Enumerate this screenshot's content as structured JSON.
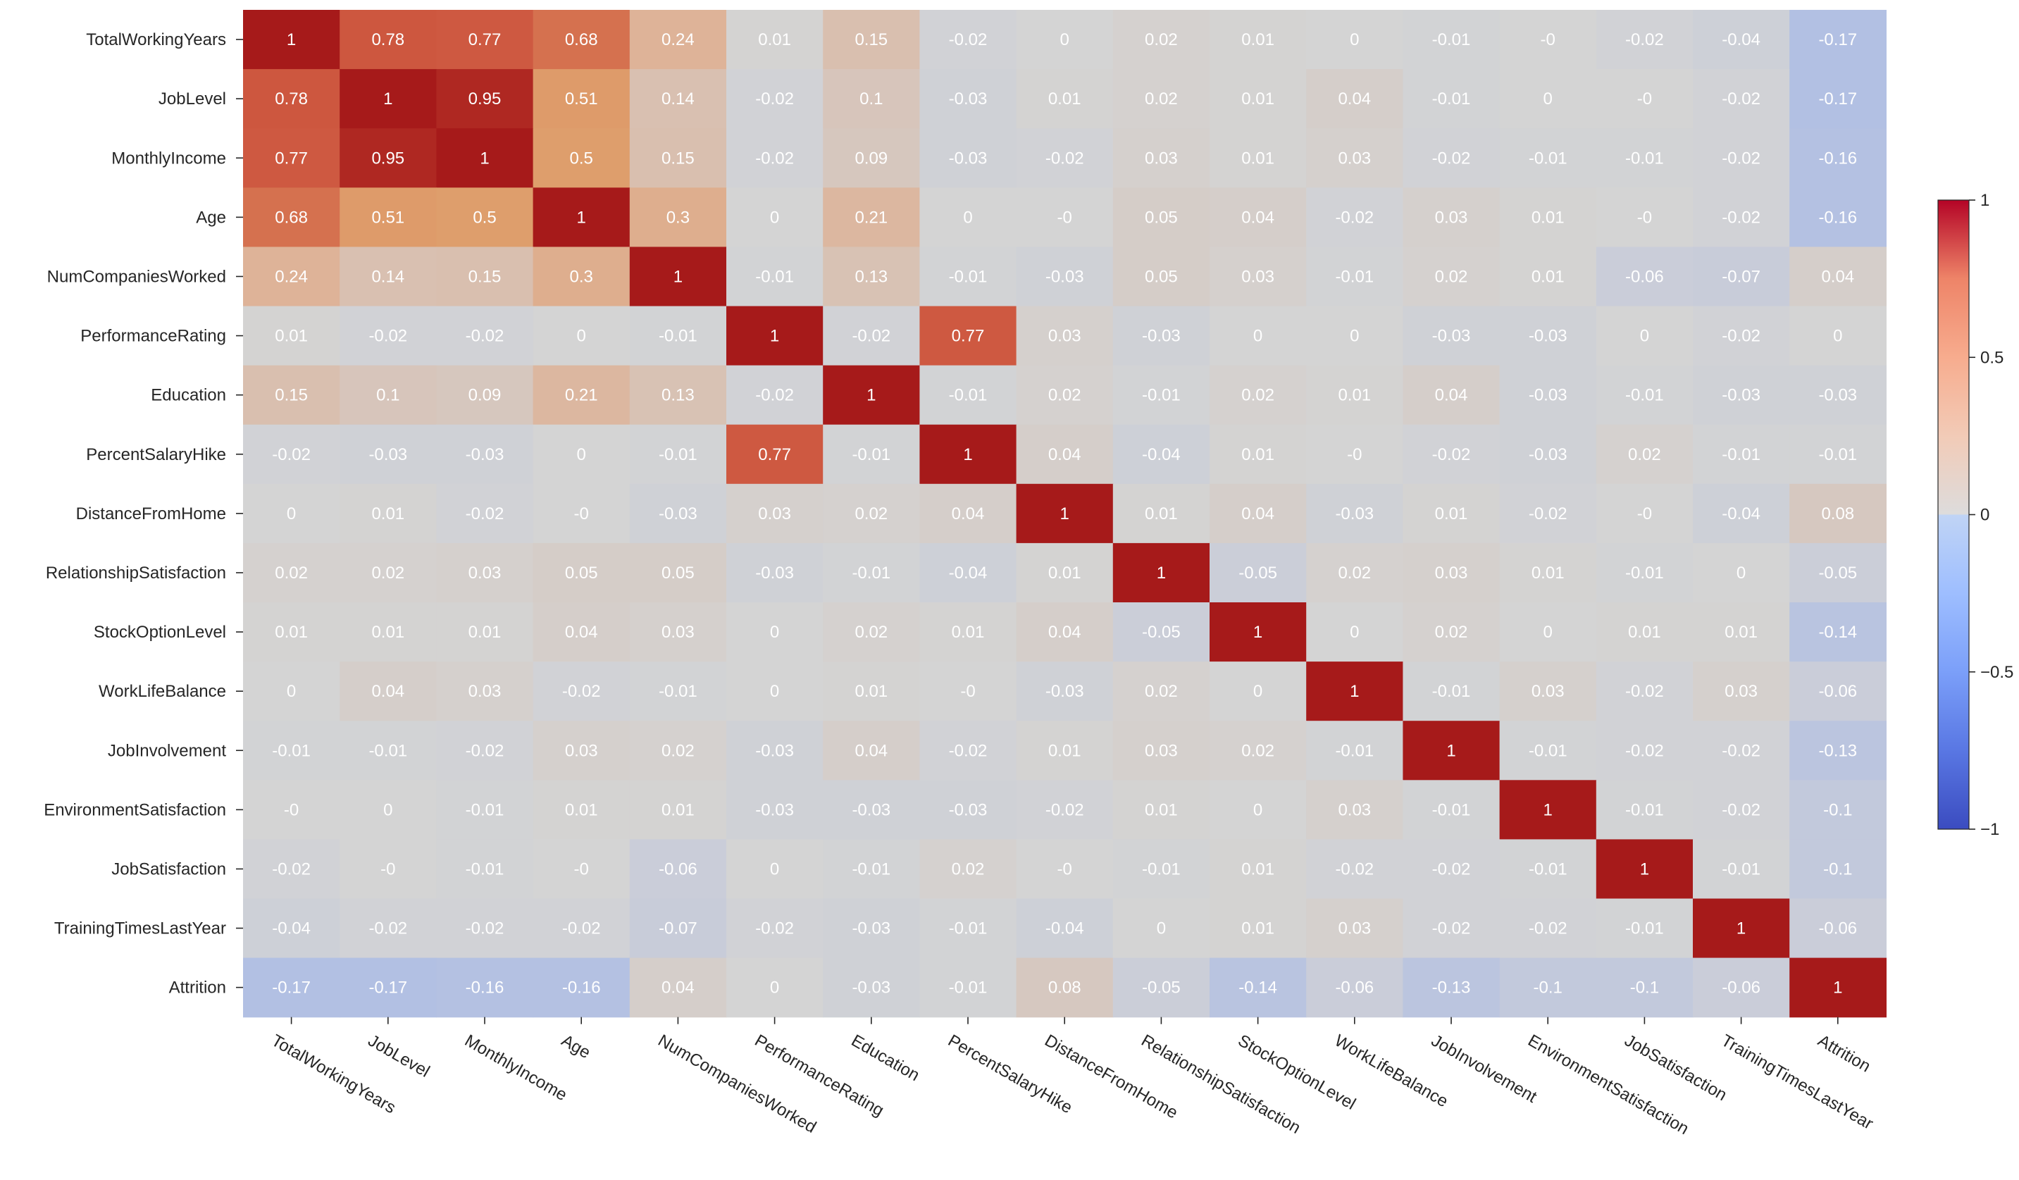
{
  "chart_data": {
    "type": "heatmap",
    "title": "",
    "xlabel": "",
    "ylabel": "",
    "colormap": "coolwarm",
    "value_range": [
      -1,
      1
    ],
    "annotate": true,
    "labels": [
      "TotalWorkingYears",
      "JobLevel",
      "MonthlyIncome",
      "Age",
      "NumCompaniesWorked",
      "PerformanceRating",
      "Education",
      "PercentSalaryHike",
      "DistanceFromHome",
      "RelationshipSatisfaction",
      "StockOptionLevel",
      "WorkLifeBalance",
      "JobInvolvement",
      "EnvironmentSatisfaction",
      "JobSatisfaction",
      "TrainingTimesLastYear",
      "Attrition"
    ],
    "values": [
      [
        "1",
        "0.78",
        "0.77",
        "0.68",
        "0.24",
        "0.01",
        "0.15",
        "-0.02",
        "0",
        "0.02",
        "0.01",
        "0",
        "-0.01",
        "-0",
        "-0.02",
        "-0.04",
        "-0.17"
      ],
      [
        "0.78",
        "1",
        "0.95",
        "0.51",
        "0.14",
        "-0.02",
        "0.1",
        "-0.03",
        "0.01",
        "0.02",
        "0.01",
        "0.04",
        "-0.01",
        "0",
        "-0",
        "-0.02",
        "-0.17"
      ],
      [
        "0.77",
        "0.95",
        "1",
        "0.5",
        "0.15",
        "-0.02",
        "0.09",
        "-0.03",
        "-0.02",
        "0.03",
        "0.01",
        "0.03",
        "-0.02",
        "-0.01",
        "-0.01",
        "-0.02",
        "-0.16"
      ],
      [
        "0.68",
        "0.51",
        "0.5",
        "1",
        "0.3",
        "0",
        "0.21",
        "0",
        "-0",
        "0.05",
        "0.04",
        "-0.02",
        "0.03",
        "0.01",
        "-0",
        "-0.02",
        "-0.16"
      ],
      [
        "0.24",
        "0.14",
        "0.15",
        "0.3",
        "1",
        "-0.01",
        "0.13",
        "-0.01",
        "-0.03",
        "0.05",
        "0.03",
        "-0.01",
        "0.02",
        "0.01",
        "-0.06",
        "-0.07",
        "0.04"
      ],
      [
        "0.01",
        "-0.02",
        "-0.02",
        "0",
        "-0.01",
        "1",
        "-0.02",
        "0.77",
        "0.03",
        "-0.03",
        "0",
        "0",
        "-0.03",
        "-0.03",
        "0",
        "-0.02",
        "0"
      ],
      [
        "0.15",
        "0.1",
        "0.09",
        "0.21",
        "0.13",
        "-0.02",
        "1",
        "-0.01",
        "0.02",
        "-0.01",
        "0.02",
        "0.01",
        "0.04",
        "-0.03",
        "-0.01",
        "-0.03",
        "-0.03"
      ],
      [
        "-0.02",
        "-0.03",
        "-0.03",
        "0",
        "-0.01",
        "0.77",
        "-0.01",
        "1",
        "0.04",
        "-0.04",
        "0.01",
        "-0",
        "-0.02",
        "-0.03",
        "0.02",
        "-0.01",
        "-0.01"
      ],
      [
        "0",
        "0.01",
        "-0.02",
        "-0",
        "-0.03",
        "0.03",
        "0.02",
        "0.04",
        "1",
        "0.01",
        "0.04",
        "-0.03",
        "0.01",
        "-0.02",
        "-0",
        "-0.04",
        "0.08"
      ],
      [
        "0.02",
        "0.02",
        "0.03",
        "0.05",
        "0.05",
        "-0.03",
        "-0.01",
        "-0.04",
        "0.01",
        "1",
        "-0.05",
        "0.02",
        "0.03",
        "0.01",
        "-0.01",
        "0",
        "-0.05"
      ],
      [
        "0.01",
        "0.01",
        "0.01",
        "0.04",
        "0.03",
        "0",
        "0.02",
        "0.01",
        "0.04",
        "-0.05",
        "1",
        "0",
        "0.02",
        "0",
        "0.01",
        "0.01",
        "-0.14"
      ],
      [
        "0",
        "0.04",
        "0.03",
        "-0.02",
        "-0.01",
        "0",
        "0.01",
        "-0",
        "-0.03",
        "0.02",
        "0",
        "1",
        "-0.01",
        "0.03",
        "-0.02",
        "0.03",
        "-0.06"
      ],
      [
        "-0.01",
        "-0.01",
        "-0.02",
        "0.03",
        "0.02",
        "-0.03",
        "0.04",
        "-0.02",
        "0.01",
        "0.03",
        "0.02",
        "-0.01",
        "1",
        "-0.01",
        "-0.02",
        "-0.02",
        "-0.13"
      ],
      [
        "-0",
        "0",
        "-0.01",
        "0.01",
        "0.01",
        "-0.03",
        "-0.03",
        "-0.03",
        "-0.02",
        "0.01",
        "0",
        "0.03",
        "-0.01",
        "1",
        "-0.01",
        "-0.02",
        "-0.1"
      ],
      [
        "-0.02",
        "-0",
        "-0.01",
        "-0",
        "-0.06",
        "0",
        "-0.01",
        "0.02",
        "-0",
        "-0.01",
        "0.01",
        "-0.02",
        "-0.02",
        "-0.01",
        "1",
        "-0.01",
        "-0.1"
      ],
      [
        "-0.04",
        "-0.02",
        "-0.02",
        "-0.02",
        "-0.07",
        "-0.02",
        "-0.03",
        "-0.01",
        "-0.04",
        "0",
        "0.01",
        "0.03",
        "-0.02",
        "-0.02",
        "-0.01",
        "1",
        "-0.06"
      ],
      [
        "-0.17",
        "-0.17",
        "-0.16",
        "-0.16",
        "0.04",
        "0",
        "-0.03",
        "-0.01",
        "0.08",
        "-0.05",
        "-0.14",
        "-0.06",
        "-0.13",
        "-0.1",
        "-0.1",
        "-0.06",
        "1"
      ]
    ],
    "colorbar": {
      "ticks": [
        "1",
        "0.5",
        "0",
        "−0.5",
        "−1"
      ],
      "tick_values": [
        1,
        0.5,
        0,
        -0.5,
        -1
      ]
    }
  }
}
